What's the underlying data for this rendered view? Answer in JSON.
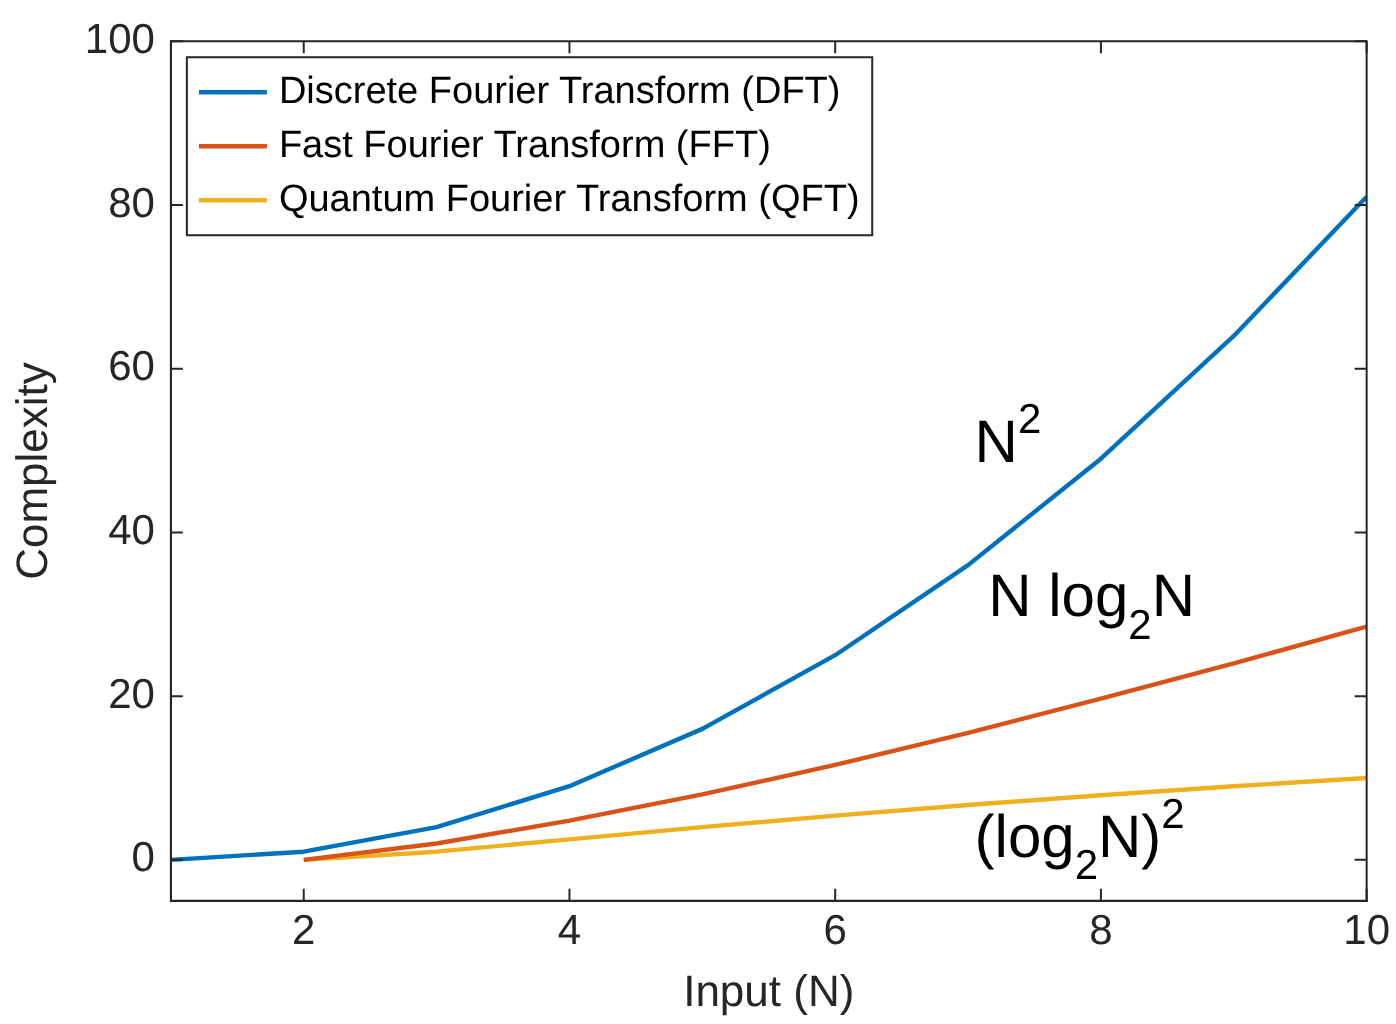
{
  "chart_data": {
    "type": "line",
    "xlabel": "Input (N)",
    "ylabel": "Complexity",
    "xlim": [
      1,
      10
    ],
    "xticks": [
      2,
      4,
      6,
      8,
      10
    ],
    "ylim": [
      -5,
      100
    ],
    "yticks": [
      0,
      20,
      40,
      60,
      80,
      100
    ],
    "grid": false,
    "legend": "top left",
    "marker": "none",
    "line_style": "solid",
    "series": [
      {
        "name": "Discrete Fourier Transform (DFT)",
        "color": "#0072bd",
        "x": [
          1,
          2,
          3,
          4,
          5,
          6,
          7,
          8,
          9,
          10
        ],
        "values": [
          0,
          1,
          4,
          9,
          16,
          25,
          36,
          49,
          64,
          81
        ]
      },
      {
        "name": "Fast Fourier Transform (FFT)",
        "color": "#d95319",
        "x": [
          2,
          3,
          4,
          5,
          6,
          7,
          8,
          9,
          10
        ],
        "values": [
          0,
          2,
          4.8,
          8,
          11.6,
          15.5,
          19.7,
          24,
          28.5
        ]
      },
      {
        "name": "Quantum Fourier Transform (QFT)",
        "color": "#edb120",
        "x": [
          2,
          3,
          4,
          5,
          6,
          7,
          8,
          9,
          10
        ],
        "values": [
          0,
          1,
          2.5,
          4,
          5.4,
          6.7,
          7.9,
          9,
          10
        ]
      }
    ],
    "annotations": [
      "N$^{2}$",
      "N log$_{2}$N",
      "(log$_{2}$N)$^{2}$"
    ]
  }
}
